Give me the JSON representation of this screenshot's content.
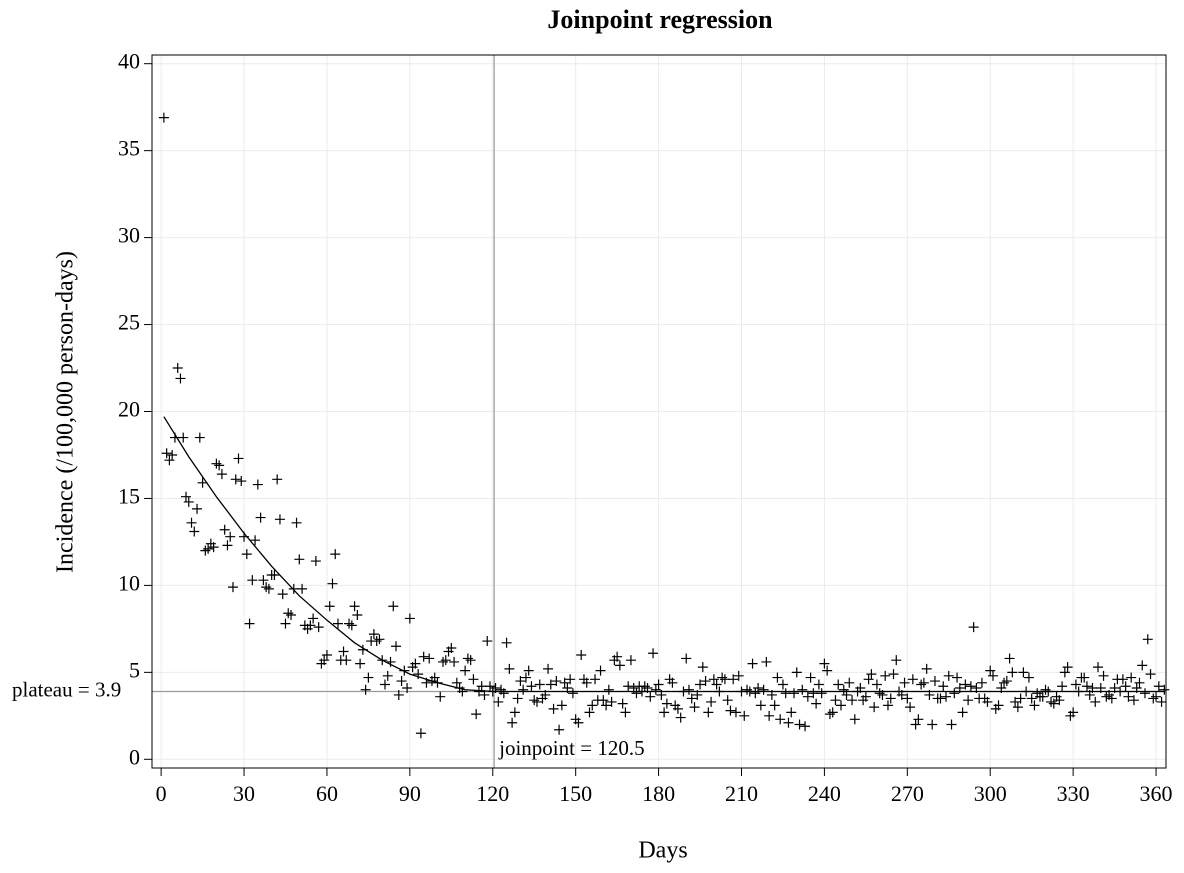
{
  "chart_data": {
    "type": "scatter",
    "title": "Joinpoint regression",
    "x_label": "Days",
    "y_label": "Incidence (/100,000 person-days)",
    "xlim": [
      -3.3,
      363.6
    ],
    "ylim": [
      -0.5,
      40.5
    ],
    "xticks": [
      0,
      30,
      60,
      90,
      120,
      150,
      180,
      210,
      240,
      270,
      300,
      330,
      360
    ],
    "yticks": [
      0,
      5,
      10,
      15,
      20,
      25,
      30,
      35,
      40
    ],
    "grid": true,
    "reference_lines": {
      "joinpoint": {
        "value": 120.5,
        "label": "joinpoint = 120.5"
      },
      "plateau": {
        "value": 3.9,
        "label": "plateau = 3.9"
      },
      "color": "#9a9a9a"
    },
    "series": [
      {
        "type": "scatter",
        "color": "#000000",
        "x": [
          1,
          2,
          3,
          4,
          5,
          6,
          7,
          8,
          9,
          10,
          11,
          12,
          13,
          14,
          15,
          16,
          17,
          18,
          19,
          20,
          21,
          22,
          23,
          24,
          25,
          26,
          27,
          28,
          29,
          30,
          31,
          32,
          33,
          34,
          35,
          36,
          37,
          38,
          39,
          40,
          41,
          42,
          43,
          44,
          45,
          46,
          47,
          48,
          49,
          50,
          51,
          52,
          53,
          54,
          55,
          56,
          57,
          58,
          59,
          60,
          61,
          62,
          63,
          64,
          65,
          66,
          67,
          68,
          69,
          70,
          71,
          72,
          73,
          74,
          75,
          76,
          77,
          78,
          79,
          80,
          81,
          82,
          83,
          84,
          85,
          86,
          87,
          88,
          89,
          90,
          91,
          92,
          93,
          94,
          95,
          96,
          97,
          98,
          99,
          100,
          101,
          102,
          103,
          104,
          105,
          106,
          107,
          108,
          109,
          110,
          111,
          112,
          113,
          114,
          115,
          116,
          117,
          118,
          119,
          120,
          121,
          122,
          123,
          124,
          125,
          126,
          127,
          128,
          129,
          130,
          131,
          132,
          133,
          134,
          135,
          136,
          137,
          138,
          139,
          140,
          141,
          142,
          143,
          144,
          145,
          146,
          147,
          148,
          149,
          150,
          151,
          152,
          153,
          154,
          155,
          156,
          157,
          158,
          159,
          160,
          161,
          162,
          163,
          164,
          165,
          166,
          167,
          168,
          169,
          170,
          171,
          172,
          173,
          174,
          175,
          176,
          177,
          178,
          179,
          180,
          181,
          182,
          183,
          184,
          185,
          186,
          187,
          188,
          189,
          190,
          191,
          192,
          193,
          194,
          195,
          196,
          197,
          198,
          199,
          200,
          201,
          202,
          203,
          204,
          205,
          206,
          207,
          208,
          209,
          210,
          211,
          212,
          213,
          214,
          215,
          216,
          217,
          218,
          219,
          220,
          221,
          222,
          223,
          224,
          225,
          226,
          227,
          228,
          229,
          230,
          231,
          232,
          233,
          234,
          235,
          236,
          237,
          238,
          239,
          240,
          241,
          242,
          243,
          244,
          245,
          246,
          247,
          248,
          249,
          250,
          251,
          252,
          253,
          254,
          255,
          256,
          257,
          258,
          259,
          260,
          261,
          262,
          263,
          264,
          265,
          266,
          267,
          268,
          269,
          270,
          271,
          272,
          273,
          274,
          275,
          276,
          277,
          278,
          279,
          280,
          281,
          282,
          283,
          284,
          285,
          286,
          287,
          288,
          289,
          290,
          291,
          292,
          293,
          294,
          295,
          296,
          297,
          298,
          299,
          300,
          301,
          302,
          303,
          304,
          305,
          306,
          307,
          308,
          309,
          310,
          311,
          312,
          313,
          314,
          315,
          316,
          317,
          318,
          319,
          320,
          321,
          322,
          323,
          324,
          325,
          326,
          327,
          328,
          329,
          330,
          331,
          332,
          333,
          334,
          335,
          336,
          337,
          338,
          339,
          340,
          341,
          342,
          343,
          344,
          345,
          346,
          347,
          348,
          349,
          350,
          351,
          352,
          353,
          354,
          355,
          356,
          357,
          358,
          359,
          360,
          361,
          362,
          363
        ],
        "values": [
          36.9,
          17.6,
          17.2,
          17.5,
          18.5,
          22.5,
          21.9,
          18.5,
          15.1,
          14.8,
          13.6,
          13.1,
          14.4,
          18.5,
          15.9,
          12.0,
          12.1,
          12.4,
          12.2,
          17.0,
          16.9,
          16.4,
          13.2,
          12.3,
          12.8,
          9.9,
          16.1,
          17.3,
          16.0,
          12.8,
          11.8,
          7.8,
          10.3,
          12.6,
          15.8,
          13.9,
          10.3,
          9.9,
          9.8,
          10.6,
          10.6,
          16.1,
          13.8,
          9.5,
          7.8,
          8.4,
          8.3,
          9.8,
          13.6,
          11.5,
          9.8,
          7.7,
          7.5,
          7.7,
          8.1,
          11.4,
          7.6,
          5.5,
          5.7,
          6.0,
          8.8,
          10.1,
          11.8,
          7.8,
          5.7,
          6.2,
          5.7,
          7.8,
          7.7,
          8.8,
          8.3,
          5.5,
          6.3,
          4.0,
          4.7,
          6.8,
          7.2,
          6.8,
          6.9,
          5.7,
          4.3,
          4.8,
          5.6,
          8.8,
          6.5,
          3.7,
          4.5,
          5.1,
          4.1,
          8.1,
          5.3,
          5.5,
          4.9,
          1.5,
          5.9,
          4.4,
          5.8,
          4.5,
          4.7,
          4.4,
          3.6,
          5.6,
          5.7,
          6.2,
          6.4,
          5.6,
          4.4,
          4.1,
          3.9,
          5.1,
          5.8,
          5.7,
          4.6,
          2.6,
          3.9,
          4.2,
          3.7,
          6.8,
          4.2,
          3.9,
          4.1,
          3.3,
          4.0,
          3.8,
          6.7,
          5.2,
          2.1,
          2.7,
          3.5,
          4.5,
          4.0,
          4.7,
          5.1,
          4.2,
          3.4,
          3.3,
          4.3,
          3.5,
          3.7,
          5.2,
          4.3,
          2.9,
          4.5,
          1.7,
          3.1,
          4.4,
          4.1,
          4.6,
          3.8,
          2.3,
          2.1,
          6.0,
          4.6,
          4.4,
          2.7,
          3.1,
          4.6,
          3.4,
          5.1,
          3.4,
          3.1,
          4.0,
          3.3,
          5.7,
          5.9,
          5.4,
          3.2,
          2.7,
          4.2,
          5.7,
          4.1,
          3.8,
          4.2,
          3.9,
          4.2,
          4.1,
          3.6,
          6.1,
          4.0,
          4.3,
          3.7,
          2.7,
          3.2,
          4.6,
          4.4,
          3.1,
          2.9,
          2.4,
          3.9,
          5.8,
          4.0,
          3.5,
          3.0,
          3.7,
          4.3,
          5.3,
          4.5,
          2.7,
          3.3,
          4.6,
          4.3,
          3.9,
          4.7,
          4.6,
          3.4,
          2.8,
          4.6,
          2.7,
          4.8,
          3.9,
          2.5,
          4.0,
          3.9,
          5.5,
          3.8,
          4.1,
          3.1,
          4.0,
          5.6,
          2.5,
          3.7,
          3.1,
          4.7,
          2.3,
          4.3,
          3.8,
          2.1,
          2.7,
          3.8,
          5.0,
          2.0,
          4.0,
          1.9,
          3.6,
          4.7,
          3.8,
          3.2,
          4.3,
          3.8,
          5.5,
          5.1,
          2.6,
          2.7,
          3.4,
          4.3,
          3.1,
          4.0,
          3.7,
          4.4,
          3.4,
          2.3,
          3.9,
          4.1,
          3.4,
          3.6,
          4.6,
          4.9,
          3.0,
          4.3,
          3.8,
          3.7,
          4.8,
          3.1,
          3.5,
          4.9,
          5.7,
          3.9,
          3.7,
          4.4,
          3.5,
          3.0,
          4.6,
          2.0,
          2.3,
          4.3,
          4.4,
          5.2,
          3.7,
          2.0,
          4.5,
          3.5,
          3.5,
          4.2,
          3.6,
          4.8,
          2.0,
          3.8,
          4.7,
          4.1,
          2.7,
          4.3,
          3.4,
          4.2,
          7.6,
          4.1,
          3.5,
          4.4,
          3.5,
          3.3,
          5.1,
          4.8,
          2.9,
          3.1,
          4.1,
          4.4,
          4.5,
          5.8,
          5.0,
          3.3,
          3.0,
          3.5,
          5.0,
          3.9,
          4.7,
          3.5,
          3.1,
          3.8,
          3.6,
          3.6,
          4.0,
          3.9,
          3.3,
          3.2,
          3.6,
          3.4,
          4.2,
          5.0,
          5.3,
          2.5,
          2.7,
          4.3,
          3.9,
          4.7,
          4.7,
          4.2,
          3.7,
          4.1,
          3.3,
          5.3,
          4.1,
          4.8,
          3.6,
          3.7,
          3.5,
          4.1,
          4.6,
          3.9,
          4.6,
          4.2,
          3.6,
          4.7,
          3.4,
          4.1,
          4.4,
          5.4,
          3.8,
          6.9,
          4.9,
          3.5,
          3.6,
          4.2,
          3.3,
          4.0
        ]
      },
      {
        "type": "line",
        "color": "#000000",
        "x": [
          1,
          10,
          20,
          30,
          40,
          50,
          60,
          70,
          80,
          90,
          100,
          110,
          120.5,
          363
        ],
        "values": [
          19.7,
          17.4,
          15.1,
          13.0,
          11.1,
          9.4,
          8.0,
          6.7,
          5.7,
          4.9,
          4.4,
          4.0,
          3.9,
          3.9
        ]
      }
    ]
  }
}
